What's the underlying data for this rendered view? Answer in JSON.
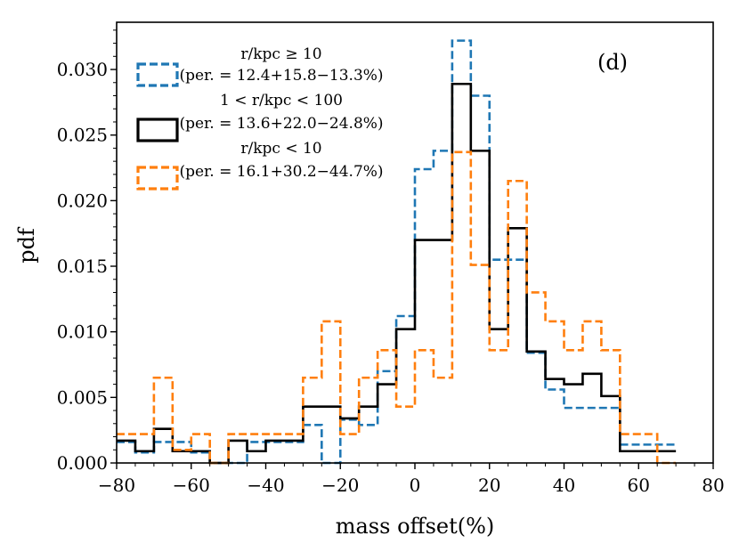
{
  "chart_data": {
    "type": "step-histogram",
    "panel_label": "(d)",
    "xlabel": "mass offset(%)",
    "ylabel": "pdf",
    "xlim": [
      -80,
      80
    ],
    "ylim": [
      0,
      0.0336
    ],
    "xticks": [
      -80,
      -60,
      -40,
      -20,
      0,
      20,
      40,
      60,
      80
    ],
    "xtick_labels": [
      "−80",
      "−60",
      "−40",
      "−20",
      "0",
      "20",
      "40",
      "60",
      "80"
    ],
    "yticks": [
      0,
      0.005,
      0.01,
      0.015,
      0.02,
      0.025,
      0.03
    ],
    "ytick_labels": [
      "0.000",
      "0.005",
      "0.010",
      "0.015",
      "0.020",
      "0.025",
      "0.030"
    ],
    "bin_edges": [
      -80,
      -75,
      -70,
      -65,
      -60,
      -55,
      -50,
      -45,
      -40,
      -35,
      -30,
      -25,
      -20,
      -15,
      -10,
      -5,
      0,
      5,
      10,
      15,
      20,
      25,
      30,
      35,
      40,
      45,
      50,
      55,
      60,
      65,
      70
    ],
    "series": [
      {
        "name": "r/kpc ≥ 10",
        "legend_line1": "r/kpc ≥ 10",
        "legend_line2": "(per. = 12.4+15.8−13.3%)",
        "color": "#1f77b4",
        "style": "dashed",
        "values": [
          0.0016,
          0.0008,
          0.0016,
          0.0016,
          0.0008,
          0,
          0,
          0.0016,
          0.0016,
          0.0016,
          0.0029,
          0,
          0.0033,
          0.0029,
          0.007,
          0.0112,
          0.0224,
          0.0238,
          0.0322,
          0.028,
          0.0155,
          0.0155,
          0.0084,
          0.0056,
          0.0042,
          0.0042,
          0.0042,
          0.0014,
          0.0014,
          0.0014
        ]
      },
      {
        "name": "1 < r/kpc < 100",
        "legend_line1": "1 < r/kpc < 100",
        "legend_line2": "(per. = 13.6+22.0−24.8%)",
        "color": "#000000",
        "style": "solid",
        "values": [
          0.0017,
          0.0009,
          0.0026,
          0.0009,
          0.0009,
          0,
          0.0017,
          0.0009,
          0.0017,
          0.0017,
          0.0043,
          0.0043,
          0.0034,
          0.0043,
          0.006,
          0.0102,
          0.017,
          0.017,
          0.0289,
          0.0238,
          0.0102,
          0.0179,
          0.0085,
          0.0064,
          0.006,
          0.0068,
          0.0051,
          0.0009,
          0.0009,
          0.0009
        ]
      },
      {
        "name": "r/kpc < 10",
        "legend_line1": "r/kpc < 10",
        "legend_line2": "(per. = 16.1+30.2−44.7%)",
        "color": "#ff7f0e",
        "style": "dashed",
        "values": [
          0.0022,
          0.0022,
          0.0065,
          0.001,
          0.0022,
          0,
          0.0022,
          0.0022,
          0.0022,
          0.0022,
          0.0065,
          0.0108,
          0.0022,
          0.0065,
          0.0086,
          0.0043,
          0.0086,
          0.0065,
          0.0237,
          0.0151,
          0.0086,
          0.0215,
          0.013,
          0.0108,
          0.0086,
          0.0108,
          0.0086,
          0.0022,
          0.0022,
          0
        ]
      }
    ]
  }
}
